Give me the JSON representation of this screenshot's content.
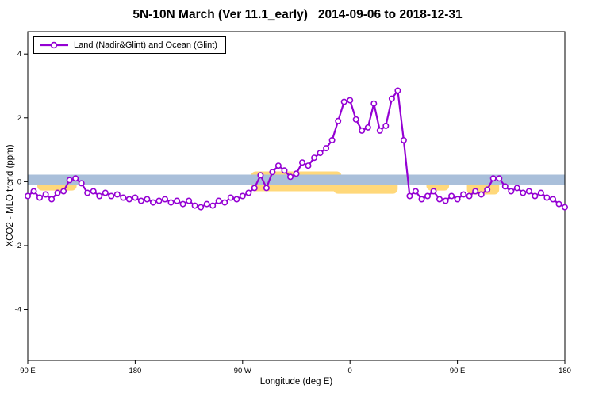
{
  "title": "5N-10N March (Ver 11.1_early)   2014-09-06 to 2018-12-31",
  "legend": {
    "label": "Land (Nadir&Glint) and Ocean (Glint)"
  },
  "colors": {
    "line": "#9400D3",
    "marker_fill": "#FFFFFF",
    "blue_band": "#A9BFDA",
    "yellow_band": "#FFD87A",
    "background": "#FFFFFF",
    "axis": "#000000"
  },
  "chart_data": {
    "type": "line",
    "title": "5N-10N March (Ver 11.1_early)  2014-09-06 to 2018-12-31",
    "xlabel": "Longitude (deg E)",
    "ylabel": "XCO2 - MLO trend (ppm)",
    "x_axis_note": "longitude wraps eastward: 90E -> 180 -> 90W -> 0 -> 90E -> 180 (plot coords 90..540)",
    "xlim": [
      90,
      540
    ],
    "ylim": [
      -5.6,
      4.7
    ],
    "grid": false,
    "legend_position": "top-left",
    "xticks": [
      {
        "value": 90,
        "label": "90 E"
      },
      {
        "value": 180,
        "label": "180"
      },
      {
        "value": 270,
        "label": "90 W"
      },
      {
        "value": 360,
        "label": "0"
      },
      {
        "value": 450,
        "label": "90 E"
      },
      {
        "value": 540,
        "label": "180"
      }
    ],
    "yticks": [
      {
        "value": -4,
        "label": "-4"
      },
      {
        "value": -2,
        "label": "-2"
      },
      {
        "value": 0,
        "label": "0"
      },
      {
        "value": 2,
        "label": "2"
      },
      {
        "value": 4,
        "label": "4"
      }
    ],
    "series": [
      {
        "name": "Land (Nadir&Glint) and Ocean (Glint)",
        "color": "#9400D3",
        "marker": "open-circle",
        "x_start": 90,
        "x_step": 5,
        "values": [
          -0.45,
          -0.3,
          -0.5,
          -0.4,
          -0.55,
          -0.35,
          -0.3,
          0.05,
          0.1,
          -0.05,
          -0.35,
          -0.3,
          -0.45,
          -0.35,
          -0.45,
          -0.4,
          -0.5,
          -0.55,
          -0.5,
          -0.6,
          -0.55,
          -0.65,
          -0.6,
          -0.55,
          -0.65,
          -0.6,
          -0.7,
          -0.6,
          -0.75,
          -0.8,
          -0.7,
          -0.75,
          -0.6,
          -0.65,
          -0.5,
          -0.55,
          -0.45,
          -0.35,
          -0.2,
          0.2,
          -0.2,
          0.3,
          0.5,
          0.35,
          0.15,
          0.25,
          0.6,
          0.5,
          0.75,
          0.9,
          1.05,
          1.3,
          1.9,
          2.5,
          2.55,
          1.95,
          1.6,
          1.7,
          2.45,
          1.6,
          1.75,
          2.6,
          2.85,
          1.3,
          -0.45,
          -0.3,
          -0.55,
          -0.45,
          -0.3,
          -0.55,
          -0.6,
          -0.45,
          -0.55,
          -0.4,
          -0.45,
          -0.3,
          -0.4,
          -0.25,
          0.1,
          0.1,
          -0.15,
          -0.3,
          -0.2,
          -0.35,
          -0.3,
          -0.45,
          -0.35,
          -0.5,
          -0.55,
          -0.7,
          -0.8
        ]
      }
    ],
    "bands": {
      "blue": {
        "color": "#A9BFDA",
        "x1": 90,
        "x2": 540,
        "y1": -0.1,
        "y2": 0.22
      },
      "yellow": {
        "color": "#FFD87A",
        "regions": [
          {
            "x1": 98,
            "x2": 131,
            "y1": -0.28,
            "y2": 0.12
          },
          {
            "x1": 277,
            "x2": 353,
            "y1": -0.3,
            "y2": 0.32
          },
          {
            "x1": 346,
            "x2": 400,
            "y1": -0.38,
            "y2": 0.1
          },
          {
            "x1": 424,
            "x2": 443,
            "y1": -0.28,
            "y2": 0.1
          },
          {
            "x1": 458,
            "x2": 485,
            "y1": -0.4,
            "y2": 0.18
          }
        ]
      }
    }
  }
}
